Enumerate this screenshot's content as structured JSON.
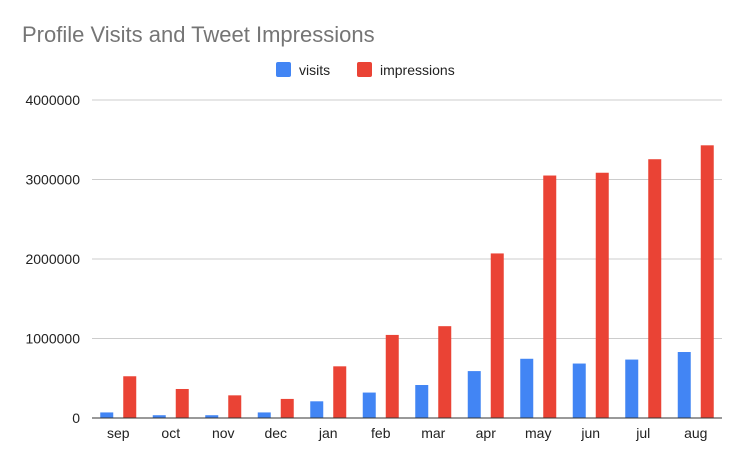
{
  "chart_data": {
    "type": "bar",
    "title": "Profile Visits and Tweet Impressions",
    "xlabel": "",
    "ylabel": "",
    "categories": [
      "sep",
      "oct",
      "nov",
      "dec",
      "jan",
      "feb",
      "mar",
      "apr",
      "may",
      "jun",
      "jul",
      "aug"
    ],
    "series": [
      {
        "name": "visits",
        "color": "#4285f4",
        "values": [
          70000,
          35000,
          35000,
          70000,
          210000,
          320000,
          415000,
          590000,
          745000,
          685000,
          735000,
          830000
        ]
      },
      {
        "name": "impressions",
        "color": "#ea4335",
        "values": [
          525000,
          365000,
          285000,
          240000,
          650000,
          1045000,
          1155000,
          2070000,
          3050000,
          3085000,
          3255000,
          3430000
        ]
      }
    ],
    "ylim": [
      0,
      4000000
    ],
    "yticks": [
      "0",
      "1000000",
      "2000000",
      "3000000",
      "4000000"
    ],
    "grid": true,
    "legend_position": "top"
  }
}
